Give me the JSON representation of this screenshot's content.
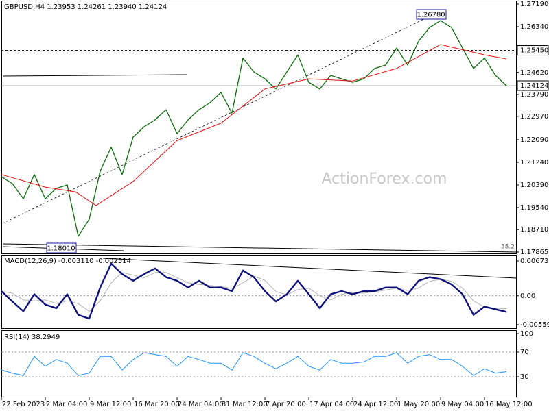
{
  "chart_data": [
    {
      "type": "line",
      "title": "GBPUSD,H4  1.23953 1.24261 1.23940 1.24124",
      "watermark": "ActionForex.com",
      "annotations": [
        "1.26780",
        "1.18010",
        "38.2"
      ],
      "xlim": [
        0,
        375
      ],
      "ylim": [
        1.17865,
        1.2719
      ],
      "yticks": [
        {
          "value": 1.2719,
          "label": "1.27190"
        },
        {
          "value": 1.2634,
          "label": "1.26340"
        },
        {
          "value": 1.2462,
          "label": "1.24620"
        },
        {
          "value": 1.2379,
          "label": "1.23790"
        },
        {
          "value": 1.2297,
          "label": "1.22970"
        },
        {
          "value": 1.2209,
          "label": "1.22090"
        },
        {
          "value": 1.2124,
          "label": "1.21240"
        },
        {
          "value": 1.2039,
          "label": "1.20390"
        },
        {
          "value": 1.1954,
          "label": "1.19540"
        },
        {
          "value": 1.1871,
          "label": "1.18710"
        },
        1.17865
      ],
      "levels": [
        {
          "value": 1.2545,
          "label": "1.25450",
          "style": "dashed"
        },
        {
          "value": 1.24124,
          "label": "1.24124",
          "style": "solid"
        }
      ],
      "series": [
        {
          "color": "#0b6b0b",
          "width": 1.3,
          "x": [
            0,
            8,
            16,
            24,
            32,
            40,
            48,
            56,
            64,
            72,
            80,
            88,
            96,
            104,
            112,
            120,
            128,
            136,
            144,
            152,
            160,
            168,
            176,
            184,
            192,
            200,
            208,
            216,
            224,
            232,
            240,
            248,
            256,
            264,
            272,
            280,
            288,
            296,
            304,
            312,
            320,
            328,
            336,
            344,
            352,
            360,
            368
          ],
          "values": [
            1.207,
            1.2044,
            1.1987,
            1.2078,
            1.1987,
            1.2026,
            1.2039,
            1.1846,
            1.191,
            1.2091,
            1.2181,
            1.2078,
            1.2219,
            1.2258,
            1.2284,
            1.2322,
            1.2232,
            1.2284,
            1.2322,
            1.2348,
            1.2387,
            1.2309,
            1.2516,
            1.2464,
            1.2438,
            1.24,
            1.2464,
            1.2528,
            1.2425,
            1.24,
            1.2451,
            1.2438,
            1.2425,
            1.2438,
            1.2477,
            1.249,
            1.2554,
            1.249,
            1.258,
            1.2631,
            1.2657,
            1.2631,
            1.2554,
            1.2477,
            1.2516,
            1.2451,
            1.24124
          ]
        },
        {
          "color": "#e01010",
          "width": 1,
          "x": [
            0,
            32,
            54,
            69,
            96,
            128,
            160,
            192,
            224,
            256,
            288,
            320,
            352,
            368
          ],
          "values": [
            1.2078,
            1.2031,
            1.2013,
            1.1962,
            1.2052,
            1.2206,
            1.2271,
            1.24,
            1.2438,
            1.243,
            1.2477,
            1.2567,
            1.2528,
            1.2513
          ]
        }
      ]
    },
    {
      "type": "line",
      "title": "MACD(12,26,9) -0.003110 -0.002514",
      "xlim": [
        0,
        375
      ],
      "ylim": [
        -0.005595,
        0.006731
      ],
      "yticks": [
        0.006731,
        {
          "value": 0,
          "label": "0.00"
        },
        -0.005595
      ],
      "series": [
        {
          "color": "#b0b0b0",
          "width": 1,
          "x": [
            0,
            8,
            16,
            24,
            32,
            40,
            48,
            56,
            64,
            72,
            80,
            88,
            96,
            104,
            112,
            120,
            128,
            136,
            144,
            152,
            160,
            168,
            176,
            184,
            192,
            200,
            208,
            216,
            224,
            232,
            240,
            248,
            256,
            264,
            272,
            280,
            288,
            296,
            304,
            312,
            320,
            328,
            336,
            344,
            352,
            360,
            368
          ],
          "values": [
            0.0009,
            0.0005,
            -0.0008,
            -0.001,
            -0.0008,
            -0.0015,
            -0.001,
            -0.0015,
            -0.003,
            -0.001,
            0.0025,
            0.0045,
            0.004,
            0.0035,
            0.0045,
            0.0045,
            0.0035,
            0.0025,
            0.0022,
            0.002,
            0.0018,
            0.0014,
            0.0025,
            0.0038,
            0.003,
            0.0008,
            0.0002,
            0.0012,
            0.0015,
            0.0,
            -0.0008,
            0.0003,
            0.0006,
            0.0005,
            0.0008,
            0.0011,
            0.0015,
            0.001,
            0.0015,
            0.0028,
            0.0032,
            0.0028,
            0.0015,
            -0.001,
            -0.0022,
            -0.0024,
            -0.002514
          ]
        },
        {
          "color": "#10127a",
          "width": 2.4,
          "x": [
            0,
            8,
            16,
            24,
            32,
            40,
            48,
            56,
            64,
            72,
            80,
            88,
            96,
            104,
            112,
            120,
            128,
            136,
            144,
            152,
            160,
            168,
            176,
            184,
            192,
            200,
            208,
            216,
            224,
            232,
            240,
            248,
            256,
            264,
            272,
            280,
            288,
            296,
            304,
            312,
            320,
            328,
            336,
            344,
            352,
            360,
            368
          ],
          "values": [
            0.0009,
            -0.0011,
            -0.003,
            0.0003,
            -0.0017,
            -0.0024,
            0.0003,
            -0.0037,
            -0.0044,
            0.0016,
            0.0062,
            0.0042,
            0.0029,
            0.0042,
            0.0053,
            0.0036,
            0.0029,
            0.0016,
            0.0029,
            0.0016,
            0.0016,
            0.0009,
            0.0049,
            0.0036,
            0.0009,
            -0.0011,
            0.0003,
            0.0029,
            0.0003,
            -0.0024,
            0.0003,
            0.0009,
            0.0003,
            0.0009,
            0.0009,
            0.0016,
            0.0016,
            0.0003,
            0.0029,
            0.0036,
            0.0032,
            0.0022,
            0.0003,
            -0.0037,
            -0.0021,
            -0.0026,
            -0.00311
          ]
        }
      ]
    },
    {
      "type": "line",
      "title": "RSI(14) 38.2949",
      "xlim": [
        0,
        375
      ],
      "ylim": [
        0,
        100
      ],
      "yticks": [
        100,
        70,
        30
      ],
      "xticks": [
        {
          "value": 0,
          "label": "22 Feb 2023"
        },
        {
          "value": 32,
          "label": "2 Mar 04:00"
        },
        {
          "value": 64,
          "label": "9 Mar 12:00"
        },
        {
          "value": 96,
          "label": "16 Mar 20:00"
        },
        {
          "value": 128,
          "label": "24 Mar 04:00"
        },
        {
          "value": 160,
          "label": "31 Mar 12:00"
        },
        {
          "value": 192,
          "label": "7 Apr 20:00"
        },
        {
          "value": 224,
          "label": "17 Apr 04:00"
        },
        {
          "value": 256,
          "label": "24 Apr 12:00"
        },
        {
          "value": 288,
          "label": "1 May 20:00"
        },
        {
          "value": 320,
          "label": "9 May 04:00"
        },
        {
          "value": 352,
          "label": "16 May 12:00"
        }
      ],
      "series": [
        {
          "color": "#1e90ff",
          "width": 1,
          "x": [
            0,
            8,
            16,
            24,
            32,
            40,
            48,
            56,
            64,
            72,
            80,
            88,
            96,
            104,
            112,
            120,
            128,
            136,
            144,
            152,
            160,
            168,
            176,
            184,
            192,
            200,
            208,
            216,
            224,
            232,
            240,
            248,
            256,
            264,
            272,
            280,
            288,
            296,
            304,
            312,
            320,
            328,
            336,
            344,
            352,
            360,
            368
          ],
          "values": [
            41,
            36,
            32,
            63,
            47,
            58,
            52,
            32,
            36,
            63,
            63,
            41,
            58,
            69,
            66,
            63,
            47,
            63,
            58,
            52,
            52,
            41,
            69,
            63,
            52,
            43,
            52,
            63,
            47,
            41,
            58,
            52,
            52,
            54,
            63,
            63,
            69,
            52,
            63,
            66,
            58,
            58,
            47,
            32,
            43,
            36,
            38.2949
          ]
        }
      ]
    }
  ]
}
